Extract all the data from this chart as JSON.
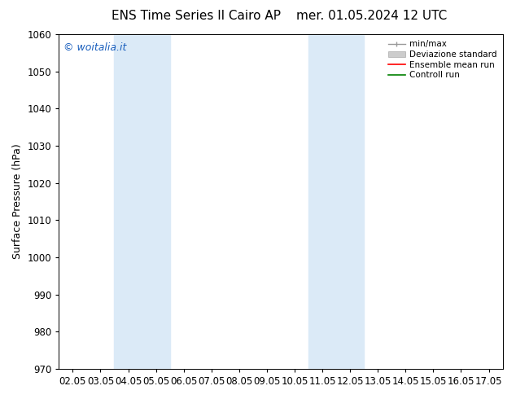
{
  "title_left": "ENS Time Series Il Cairo AP",
  "title_right": "mer. 01.05.2024 12 UTC",
  "ylabel": "Surface Pressure (hPa)",
  "ylim": [
    970,
    1060
  ],
  "yticks": [
    970,
    980,
    990,
    1000,
    1010,
    1020,
    1030,
    1040,
    1050,
    1060
  ],
  "xlabels": [
    "02.05",
    "03.05",
    "04.05",
    "05.05",
    "06.05",
    "07.05",
    "08.05",
    "09.05",
    "10.05",
    "11.05",
    "12.05",
    "13.05",
    "14.05",
    "15.05",
    "16.05",
    "17.05"
  ],
  "shaded_regions": [
    {
      "xstart": 2,
      "xend": 4,
      "color": "#dbeaf7"
    },
    {
      "xstart": 9,
      "xend": 11,
      "color": "#dbeaf7"
    }
  ],
  "watermark_text": "© woitalia.it",
  "watermark_color": "#1a5fbd",
  "watermark_fontsize": 9,
  "background_color": "#ffffff",
  "title_fontsize": 11,
  "axis_label_fontsize": 9,
  "tick_fontsize": 8.5
}
